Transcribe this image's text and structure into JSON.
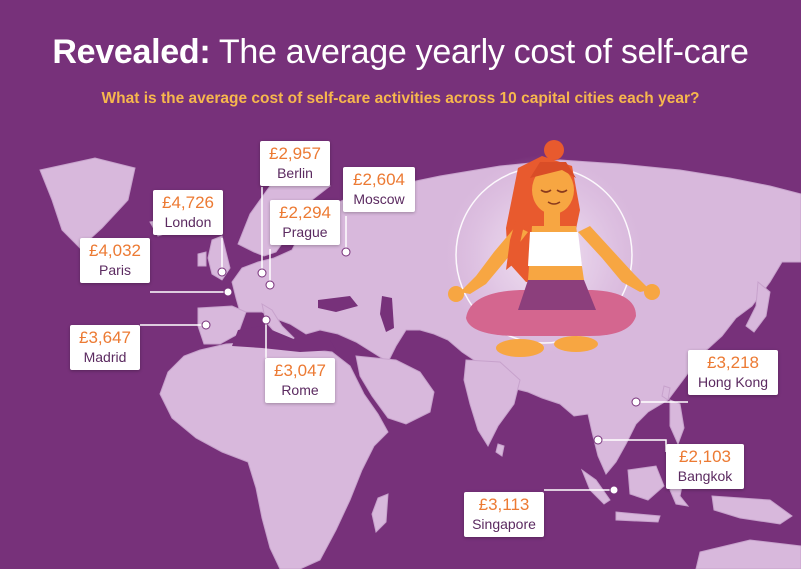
{
  "header": {
    "title_bold": "Revealed:",
    "title_rest": " The average yearly cost of self-care",
    "subtitle": "What is the average cost of self-care activities across 10 capital cities each year?"
  },
  "colors": {
    "background": "#77317a",
    "land": "#d8b8dc",
    "title": "#ffffff",
    "subtitle": "#f7b74d",
    "price": "#ec7a33",
    "city": "#5b2a60",
    "leader_line": "#ffffff"
  },
  "cities": [
    {
      "id": "berlin",
      "name": "Berlin",
      "price": "£2,957"
    },
    {
      "id": "moscow",
      "name": "Moscow",
      "price": "£2,604"
    },
    {
      "id": "london",
      "name": "London",
      "price": "£4,726"
    },
    {
      "id": "prague",
      "name": "Prague",
      "price": "£2,294"
    },
    {
      "id": "paris",
      "name": "Paris",
      "price": "£4,032"
    },
    {
      "id": "madrid",
      "name": "Madrid",
      "price": "£3,647"
    },
    {
      "id": "rome",
      "name": "Rome",
      "price": "£3,047"
    },
    {
      "id": "hong-kong",
      "name": "Hong Kong",
      "price": "£3,218"
    },
    {
      "id": "bangkok",
      "name": "Bangkok",
      "price": "£2,103"
    },
    {
      "id": "singapore",
      "name": "Singapore",
      "price": "£3,113"
    }
  ],
  "illustration": {
    "subject": "meditating-woman-lotus-pose",
    "icon": "meditation-figure-icon"
  }
}
